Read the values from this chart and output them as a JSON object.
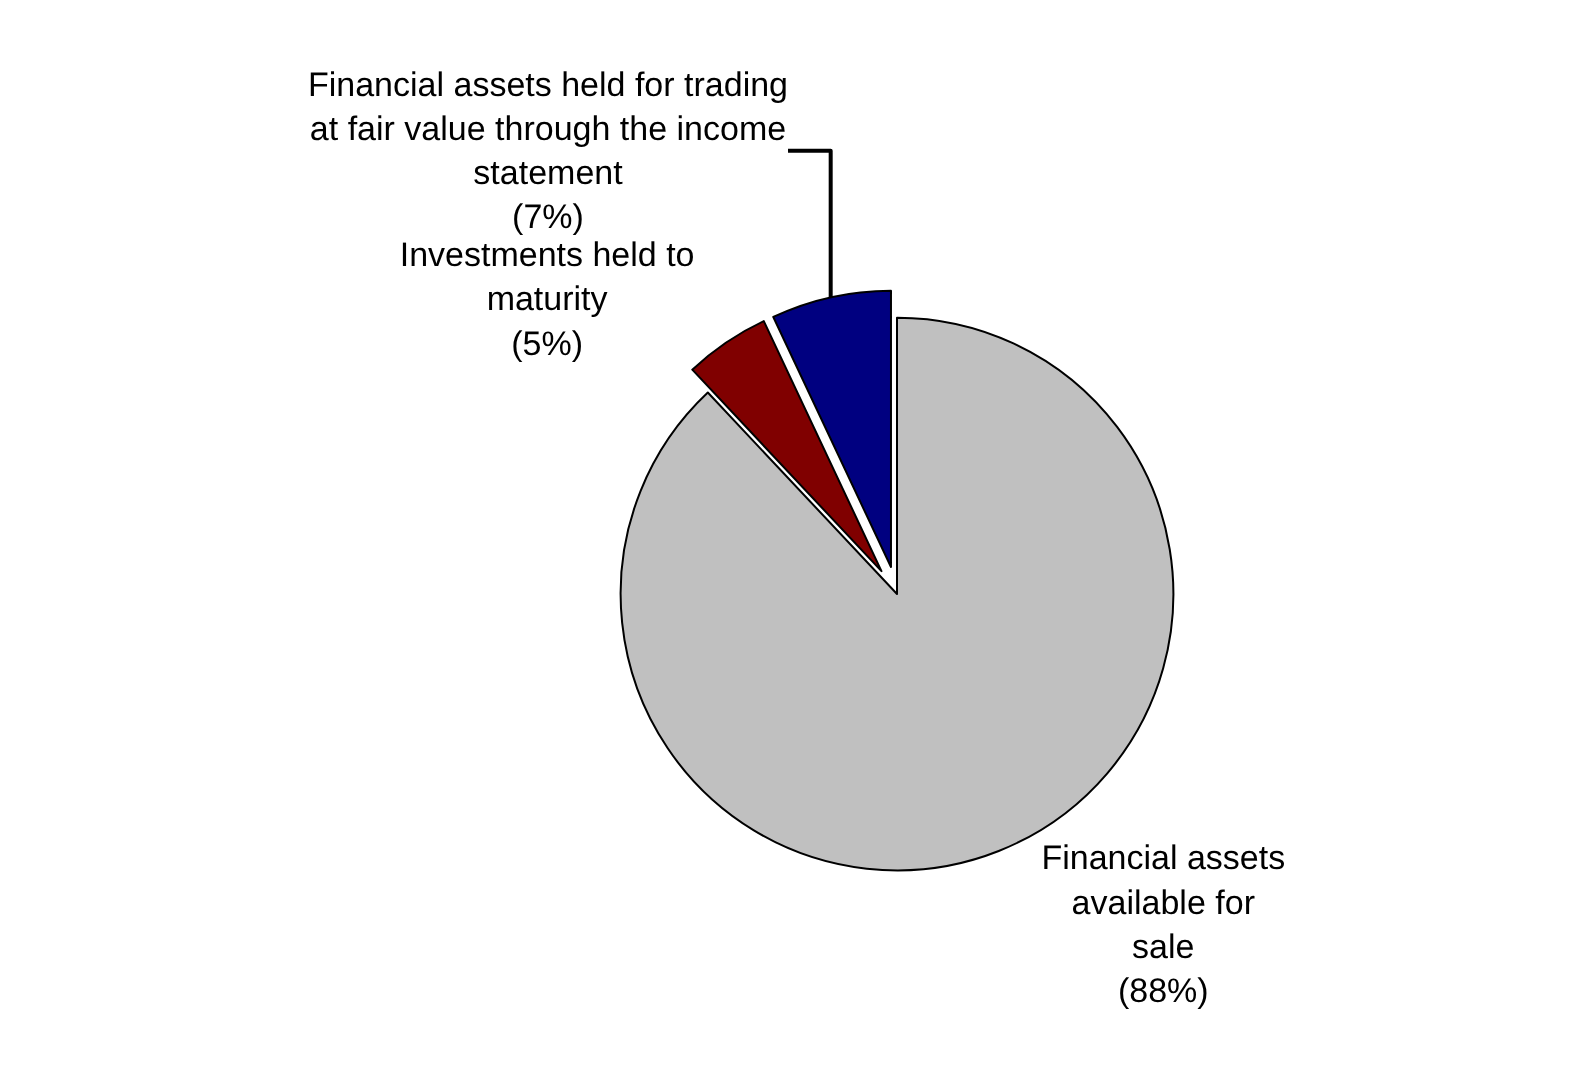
{
  "chart_data": {
    "type": "pie",
    "categories": [
      "Financial assets available for sale",
      "Investments held to maturity",
      "Financial assets held for trading at fair value through the income statement"
    ],
    "values": [
      88,
      5,
      7
    ],
    "colors": [
      "#c0c0c0",
      "#800000",
      "#000080"
    ],
    "value_labels": [
      "(88%)",
      "(5%)",
      "(7%)"
    ],
    "legend": false
  }
}
